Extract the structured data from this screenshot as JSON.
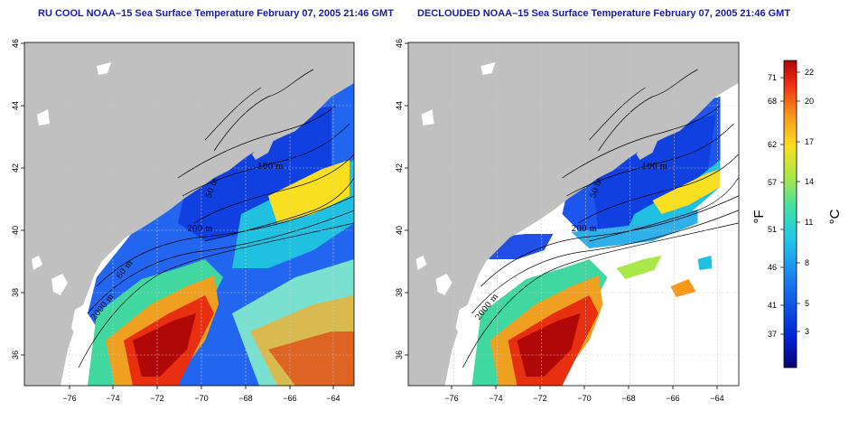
{
  "panels": [
    {
      "title": "RU COOL NOAA–15 Sea Surface Temperature February 07, 2005 21:46 GMT",
      "type": "raw"
    },
    {
      "title": "DECLOUDED NOAA–15 Sea Surface Temperature February 07, 2005 21:46 GMT",
      "type": "declouded"
    }
  ],
  "axes": {
    "x_ticks": [
      "−76",
      "−74",
      "−72",
      "−70",
      "−68",
      "−66",
      "−64"
    ],
    "y_ticks": [
      "36",
      "38",
      "40",
      "42",
      "44",
      "46"
    ]
  },
  "contour_labels": [
    "200 m",
    "100 m",
    "50 m",
    "2000 m",
    "60 m",
    "100 m",
    "200 m",
    "50 m",
    "2000 m"
  ],
  "colorbar": {
    "fahrenheit_ticks": [
      "71",
      "68",
      "62",
      "57",
      "51",
      "46",
      "41",
      "37"
    ],
    "celsius_ticks": [
      "22",
      "20",
      "17",
      "14",
      "11",
      "8",
      "5",
      "3"
    ],
    "fahrenheit_unit": "°F",
    "celsius_unit": "°C",
    "colors": [
      "#08006e",
      "#0024d8",
      "#1a7af0",
      "#20c8e8",
      "#40e0a8",
      "#a8e848",
      "#f8e020",
      "#f89818",
      "#f03010",
      "#b00808"
    ]
  },
  "colors": {
    "land": "#c0c0c0",
    "title": "#1a1aa8"
  }
}
